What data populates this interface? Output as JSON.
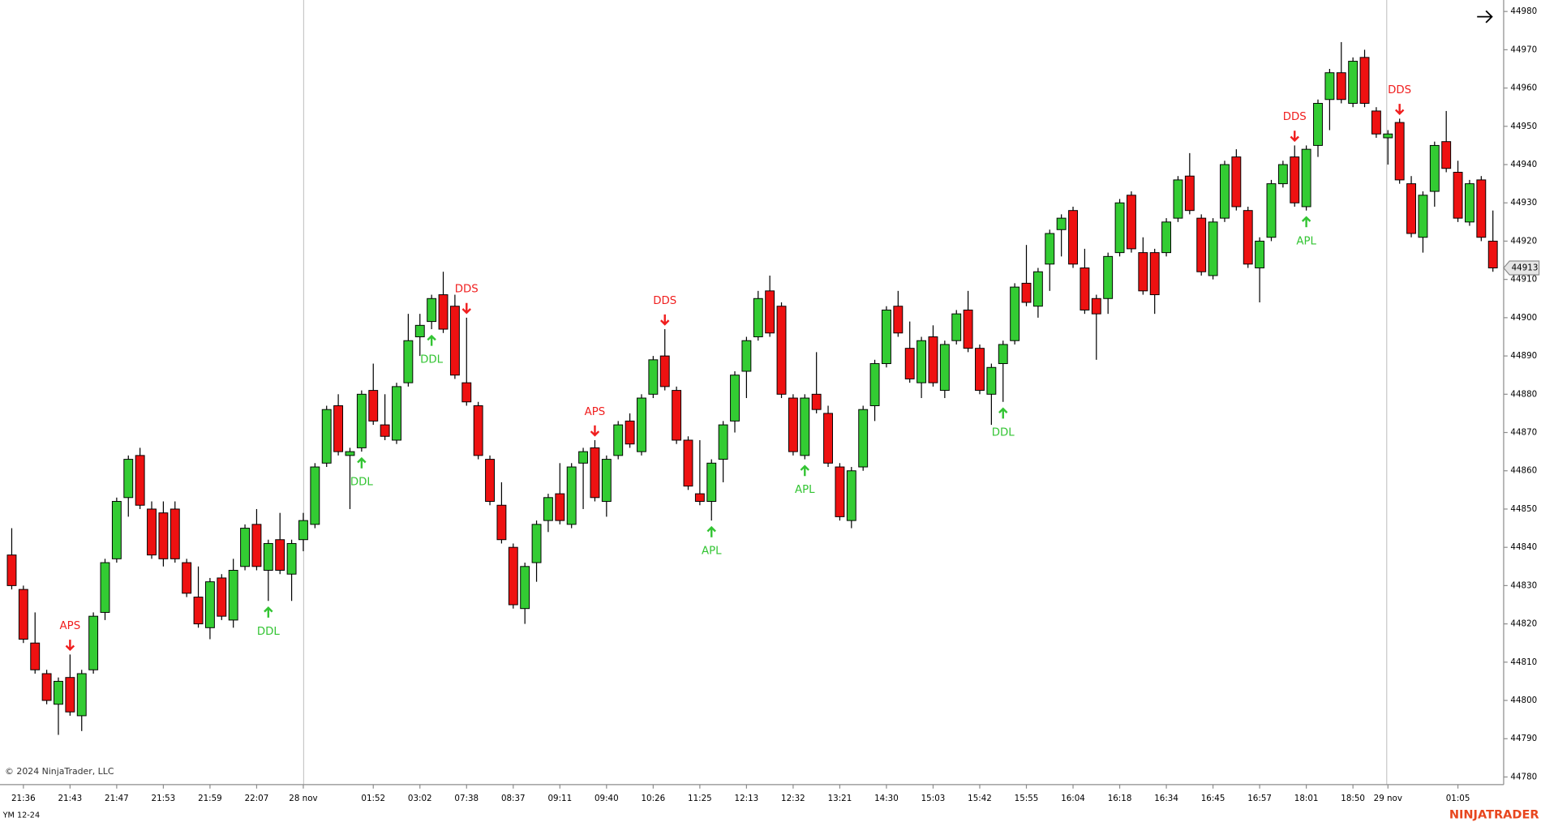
{
  "chart_data": {
    "type": "candlestick",
    "categories": [
      null,
      "21:36",
      null,
      null,
      null,
      "21:43",
      null,
      null,
      null,
      "21:47",
      null,
      null,
      null,
      "21:53",
      null,
      null,
      null,
      "21:59",
      null,
      null,
      null,
      "22:07",
      null,
      null,
      null,
      "28 nov",
      null,
      null,
      null,
      null,
      null,
      "01:52",
      null,
      null,
      null,
      "03:02",
      null,
      null,
      null,
      "07:38",
      null,
      null,
      null,
      "08:37",
      null,
      null,
      null,
      "09:11",
      null,
      null,
      null,
      "09:40",
      null,
      null,
      null,
      "10:26",
      null,
      null,
      null,
      "11:25",
      null,
      null,
      null,
      "12:13",
      null,
      null,
      null,
      "12:32",
      null,
      null,
      null,
      "13:21",
      null,
      null,
      null,
      "14:30",
      null,
      null,
      null,
      "15:03",
      null,
      null,
      null,
      "15:42",
      null,
      null,
      null,
      "15:55",
      null,
      null,
      null,
      "16:04",
      null,
      null,
      null,
      "16:18",
      null,
      null,
      null,
      "16:34",
      null,
      null,
      null,
      "16:45",
      null,
      null,
      null,
      "16:57",
      null,
      null,
      null,
      "18:01",
      null,
      null,
      null,
      "18:50",
      null,
      null,
      "29 nov",
      null,
      null,
      null,
      null,
      null,
      "01:05",
      null,
      null,
      null
    ],
    "open": [
      44838,
      44829,
      44815,
      44807,
      44799,
      44806,
      44796,
      44808,
      44823,
      44837,
      44853,
      44864,
      44850,
      44849,
      44850,
      44836,
      44827,
      44819,
      44832,
      44821,
      44835,
      44846,
      44834,
      44842,
      44833,
      44842,
      44846,
      44862,
      44877,
      44864,
      44866,
      44881,
      44872,
      44868,
      44883,
      44895,
      44899,
      44906,
      44903,
      44883,
      44877,
      44863,
      44851,
      44840,
      44824,
      44836,
      44847,
      44854,
      44846,
      44862,
      44866,
      44852,
      44864,
      44873,
      44865,
      44880,
      44890,
      44881,
      44868,
      44854,
      44852,
      44863,
      44873,
      44886,
      44895,
      44907,
      44903,
      44879,
      44864,
      44880,
      44875,
      44861,
      44847,
      44861,
      44877,
      44888,
      44903,
      44892,
      44883,
      44895,
      44881,
      44894,
      44902,
      44892,
      44880,
      44888,
      44894,
      44909,
      44903,
      44914,
      44923,
      44928,
      44913,
      44905,
      44905,
      44917,
      44932,
      44917,
      44917,
      44917,
      44926,
      44937,
      44926,
      44911,
      44926,
      44942,
      44928,
      44913,
      44921,
      44935,
      44942,
      44929,
      44945,
      44957,
      44964,
      44956,
      44968,
      44954,
      44947,
      44951,
      44935,
      44921,
      44933,
      44946,
      44938,
      44925,
      44936,
      44920
    ],
    "high": [
      44845,
      44830,
      44823,
      44808,
      44806,
      44812,
      44808,
      44823,
      44837,
      44853,
      44864,
      44866,
      44852,
      44852,
      44852,
      44837,
      44835,
      44832,
      44833,
      44837,
      44846,
      44850,
      44842,
      44849,
      44842,
      44849,
      44862,
      44877,
      44880,
      44866,
      44881,
      44888,
      44880,
      44883,
      44901,
      44901,
      44906,
      44912,
      44906,
      44900,
      44878,
      44864,
      44857,
      44841,
      44836,
      44847,
      44854,
      44862,
      44862,
      44866,
      44868,
      44864,
      44873,
      44875,
      44880,
      44890,
      44897,
      44882,
      44869,
      44868,
      44863,
      44873,
      44886,
      44895,
      44907,
      44911,
      44904,
      44880,
      44880,
      44891,
      44877,
      44862,
      44861,
      44877,
      44889,
      44903,
      44907,
      44899,
      44895,
      44898,
      44894,
      44902,
      44907,
      44893,
      44888,
      44894,
      44909,
      44919,
      44913,
      44923,
      44927,
      44929,
      44918,
      44906,
      44917,
      44931,
      44933,
      44921,
      44918,
      44926,
      44937,
      44943,
      44927,
      44926,
      44941,
      44944,
      44929,
      44921,
      44936,
      44941,
      44945,
      44945,
      44957,
      44965,
      44972,
      44968,
      44970,
      44955,
      44949,
      44952,
      44937,
      44933,
      44946,
      44954,
      44941,
      44936,
      44937,
      44928
    ],
    "low": [
      44829,
      44815,
      44807,
      44799,
      44791,
      44796,
      44792,
      44807,
      44821,
      44836,
      44848,
      44850,
      44837,
      44835,
      44836,
      44827,
      44819,
      44816,
      44821,
      44819,
      44834,
      44834,
      44826,
      44833,
      44826,
      44839,
      44845,
      44861,
      44864,
      44850,
      44865,
      44872,
      44868,
      44867,
      44882,
      44890,
      44897,
      44896,
      44884,
      44877,
      44863,
      44851,
      44841,
      44824,
      44820,
      44831,
      44844,
      44846,
      44845,
      44850,
      44852,
      44848,
      44863,
      44866,
      44864,
      44879,
      44881,
      44867,
      44855,
      44851,
      44847,
      44857,
      44870,
      44879,
      44894,
      44895,
      44879,
      44864,
      44863,
      44875,
      44861,
      44847,
      44845,
      44860,
      44873,
      44887,
      44895,
      44883,
      44879,
      44882,
      44879,
      44893,
      44891,
      44880,
      44872,
      44878,
      44893,
      44903,
      44900,
      44907,
      44916,
      44913,
      44901,
      44889,
      44901,
      44916,
      44917,
      44906,
      44901,
      44916,
      44925,
      44927,
      44911,
      44910,
      44925,
      44928,
      44913,
      44904,
      44920,
      44934,
      44929,
      44928,
      44942,
      44949,
      44956,
      44955,
      44955,
      44947,
      44940,
      44935,
      44921,
      44917,
      44929,
      44938,
      44925,
      44924,
      44920,
      44912
    ],
    "close": [
      44830,
      44816,
      44808,
      44800,
      44805,
      44797,
      44807,
      44822,
      44836,
      44852,
      44863,
      44851,
      44838,
      44837,
      44837,
      44828,
      44820,
      44831,
      44822,
      44834,
      44845,
      44835,
      44841,
      44834,
      44841,
      44847,
      44861,
      44876,
      44865,
      44865,
      44880,
      44873,
      44869,
      44882,
      44894,
      44898,
      44905,
      44897,
      44885,
      44878,
      44864,
      44852,
      44842,
      44825,
      44835,
      44846,
      44853,
      44847,
      44861,
      44865,
      44853,
      44863,
      44872,
      44867,
      44879,
      44889,
      44882,
      44868,
      44856,
      44852,
      44862,
      44872,
      44885,
      44894,
      44905,
      44896,
      44880,
      44865,
      44879,
      44876,
      44862,
      44848,
      44860,
      44876,
      44888,
      44902,
      44896,
      44884,
      44894,
      44883,
      44893,
      44901,
      44892,
      44881,
      44887,
      44893,
      44908,
      44904,
      44912,
      44922,
      44926,
      44914,
      44902,
      44901,
      44916,
      44930,
      44918,
      44907,
      44906,
      44925,
      44936,
      44928,
      44912,
      44925,
      44940,
      44929,
      44914,
      44920,
      44935,
      44940,
      44930,
      44944,
      44956,
      44964,
      44957,
      44967,
      44956,
      44948,
      44948,
      44936,
      44922,
      44932,
      44945,
      44939,
      44926,
      44935,
      44921,
      44913
    ],
    "up_color": "#33cc33",
    "down_color": "#ee1111",
    "ylim": [
      44778,
      44983
    ],
    "yticks": [
      44780,
      44790,
      44800,
      44810,
      44820,
      44830,
      44840,
      44850,
      44860,
      44870,
      44880,
      44890,
      44900,
      44910,
      44920,
      44930,
      44940,
      44950,
      44960,
      44970,
      44980
    ],
    "last_price": 44913,
    "annotations": [
      {
        "text": "APS",
        "index": 5,
        "position": "above",
        "color": "#f01e1e"
      },
      {
        "text": "DDL",
        "index": 22,
        "position": "below",
        "color": "#33c433"
      },
      {
        "text": "DDL",
        "index": 30,
        "position": "below",
        "color": "#33c433"
      },
      {
        "text": "DDL",
        "index": 36,
        "position": "below",
        "color": "#33c433"
      },
      {
        "text": "DDS",
        "index": 39,
        "position": "above",
        "color": "#f01e1e"
      },
      {
        "text": "APS",
        "index": 50,
        "position": "above",
        "color": "#f01e1e"
      },
      {
        "text": "DDS",
        "index": 56,
        "position": "above",
        "color": "#f01e1e"
      },
      {
        "text": "APL",
        "index": 60,
        "position": "below",
        "color": "#33c433"
      },
      {
        "text": "APL",
        "index": 68,
        "position": "below",
        "color": "#33c433"
      },
      {
        "text": "DDL",
        "index": 85,
        "position": "below",
        "color": "#33c433"
      },
      {
        "text": "DDS",
        "index": 110,
        "position": "above",
        "color": "#f01e1e"
      },
      {
        "text": "APL",
        "index": 111,
        "position": "below",
        "color": "#33c433"
      },
      {
        "text": "DDS",
        "index": 119,
        "position": "above",
        "color": "#f01e1e"
      }
    ]
  },
  "copyright": "© 2024 NinjaTrader, LLC",
  "instrument": "YM 12-24",
  "brand": "NINJATRADER"
}
